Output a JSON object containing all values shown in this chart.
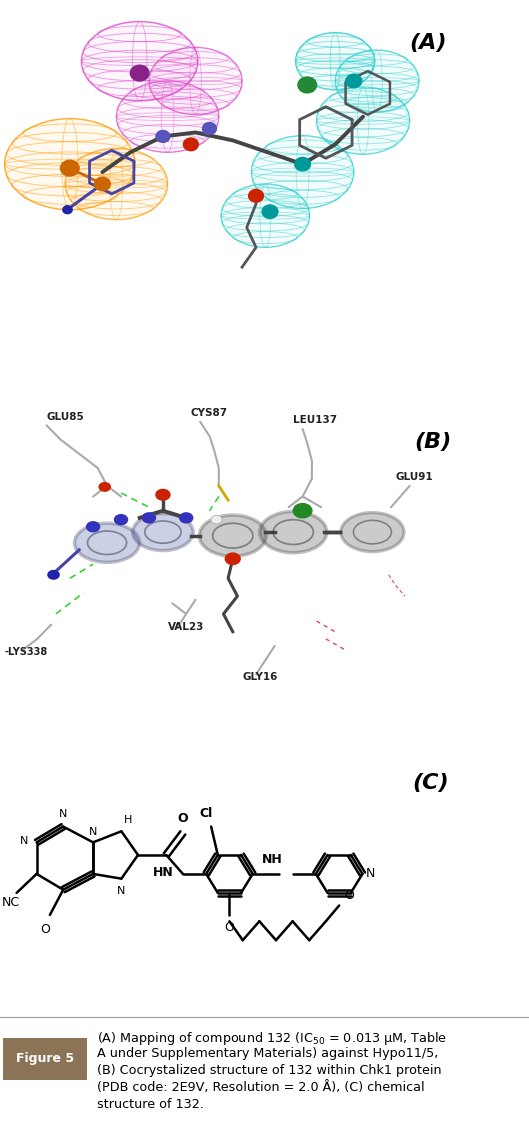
{
  "figure_width": 5.29,
  "figure_height": 11.48,
  "dpi": 100,
  "bg_color": "#ffffff",
  "panel_A_label": "(A)",
  "panel_B_label": "(B)",
  "panel_C_label": "(C)",
  "panel_label_fontsize": 16,
  "caption_fontsize": 9.2,
  "figure5_label": "Figure 5",
  "figure5_bg": "#8B7355",
  "figure5_fg": "#ffffff",
  "magenta_color": "#CC44CC",
  "cyan_color": "#00CCCC",
  "orange_color": "#FFA500",
  "mol_gray": "#555555",
  "mol_dark": "#333333"
}
